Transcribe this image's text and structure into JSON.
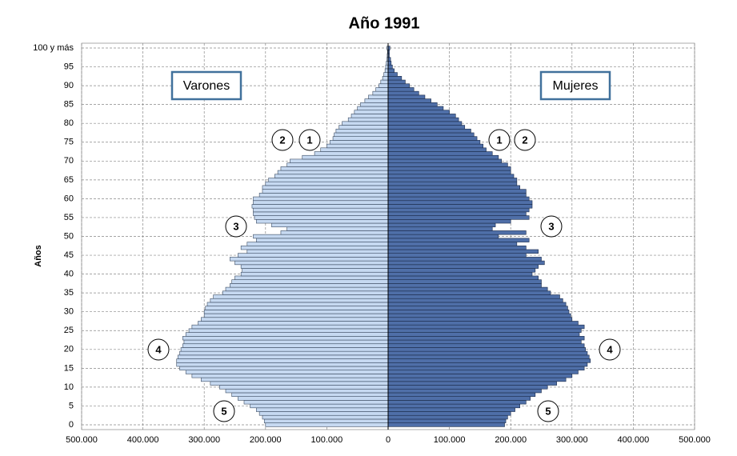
{
  "chart_data": {
    "type": "pyramid",
    "title": "Año 1991",
    "y_label": "Años",
    "categories": [
      "0",
      null,
      null,
      null,
      null,
      "5",
      null,
      null,
      null,
      null,
      "10",
      null,
      null,
      null,
      null,
      "15",
      null,
      null,
      null,
      null,
      "20",
      null,
      null,
      null,
      null,
      "25",
      null,
      null,
      null,
      null,
      "30",
      null,
      null,
      null,
      null,
      "35",
      null,
      null,
      null,
      null,
      "40",
      null,
      null,
      null,
      null,
      "45",
      null,
      null,
      null,
      null,
      "50",
      null,
      null,
      null,
      null,
      "55",
      null,
      null,
      null,
      null,
      "60",
      null,
      null,
      null,
      null,
      "65",
      null,
      null,
      null,
      null,
      "70",
      null,
      null,
      null,
      null,
      "75",
      null,
      null,
      null,
      null,
      "80",
      null,
      null,
      null,
      null,
      "85",
      null,
      null,
      null,
      null,
      "90",
      null,
      null,
      null,
      null,
      "95",
      null,
      null,
      null,
      null,
      "100 y más"
    ],
    "series": [
      {
        "name": "Varones",
        "color": "#c6d9f1",
        "values": [
          -200000,
          -202000,
          -205000,
          -210000,
          -215000,
          -225000,
          -235000,
          -245000,
          -255000,
          -265000,
          -275000,
          -290000,
          -305000,
          -320000,
          -330000,
          -340000,
          -345000,
          -345000,
          -343000,
          -340000,
          -338000,
          -335000,
          -333000,
          -335000,
          -330000,
          -325000,
          -320000,
          -310000,
          -305000,
          -300000,
          -300000,
          -298000,
          -295000,
          -290000,
          -285000,
          -270000,
          -265000,
          -258000,
          -255000,
          -250000,
          -240000,
          -238000,
          -240000,
          -250000,
          -258000,
          -245000,
          -230000,
          -240000,
          -230000,
          -215000,
          -220000,
          -175000,
          -165000,
          -190000,
          -215000,
          -218000,
          -220000,
          -220000,
          -222000,
          -220000,
          -220000,
          -210000,
          -205000,
          -205000,
          -200000,
          -195000,
          -185000,
          -180000,
          -175000,
          -165000,
          -160000,
          -140000,
          -120000,
          -110000,
          -100000,
          -95000,
          -90000,
          -88000,
          -85000,
          -80000,
          -75000,
          -65000,
          -60000,
          -55000,
          -50000,
          -45000,
          -38000,
          -32000,
          -25000,
          -20000,
          -15000,
          -12000,
          -9000,
          -7000,
          -5000,
          -4000,
          -3000,
          -2000,
          -1500,
          -1000,
          -2000
        ]
      },
      {
        "name": "Mujeres",
        "color": "#4f6fa8",
        "values": [
          190000,
          192000,
          195000,
          200000,
          207000,
          215000,
          225000,
          232000,
          240000,
          250000,
          260000,
          275000,
          290000,
          300000,
          310000,
          320000,
          325000,
          330000,
          328000,
          325000,
          322000,
          320000,
          315000,
          320000,
          312000,
          315000,
          320000,
          310000,
          300000,
          298000,
          295000,
          293000,
          290000,
          285000,
          280000,
          265000,
          260000,
          250000,
          250000,
          245000,
          235000,
          240000,
          245000,
          255000,
          250000,
          225000,
          245000,
          225000,
          210000,
          230000,
          180000,
          225000,
          170000,
          175000,
          200000,
          230000,
          225000,
          230000,
          235000,
          235000,
          230000,
          225000,
          225000,
          215000,
          210000,
          210000,
          205000,
          200000,
          200000,
          195000,
          185000,
          180000,
          170000,
          160000,
          155000,
          150000,
          145000,
          140000,
          135000,
          125000,
          120000,
          115000,
          110000,
          100000,
          90000,
          80000,
          70000,
          60000,
          50000,
          42000,
          35000,
          28000,
          22000,
          15000,
          10000,
          7000,
          5000,
          4000,
          2000,
          2000,
          3000
        ]
      }
    ],
    "xlim": [
      -500000,
      500000
    ],
    "xticks": [
      {
        "value": -500000,
        "label": "500.000"
      },
      {
        "value": -400000,
        "label": "400.000"
      },
      {
        "value": -300000,
        "label": "300.000"
      },
      {
        "value": -200000,
        "label": "200.000"
      },
      {
        "value": -100000,
        "label": "100.000"
      },
      0,
      {
        "value": 100000,
        "label": "100.000"
      },
      {
        "value": 200000,
        "label": "200.000"
      },
      {
        "value": 300000,
        "label": "300.000"
      },
      {
        "value": 400000,
        "label": "400.000"
      },
      {
        "value": 500000,
        "label": "500.000"
      }
    ],
    "grid": true,
    "annotations": [
      "2",
      "1",
      "1",
      "2",
      "3",
      "3",
      "4",
      "4",
      "5",
      "5"
    ]
  }
}
